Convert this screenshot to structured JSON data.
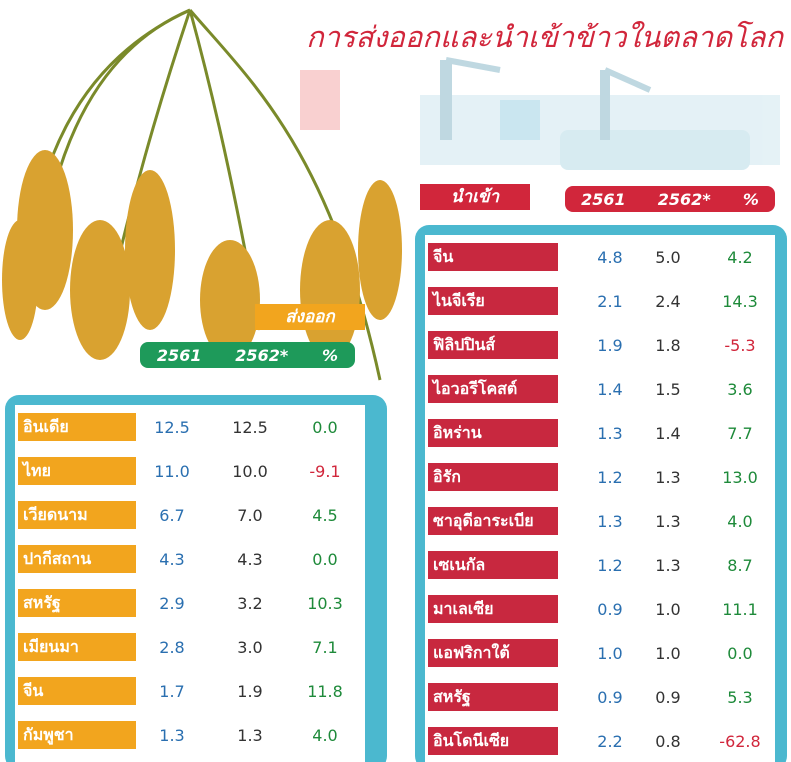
{
  "title": "การส่งออกและนำเข้าข้าวในตลาดโลก",
  "imports": {
    "label": "นำเข้า",
    "headers": [
      "2561",
      "2562*",
      "%"
    ],
    "rows": [
      [
        "จีน",
        "4.8",
        "5.0",
        "4.2"
      ],
      [
        "ไนจีเรีย",
        "2.1",
        "2.4",
        "14.3"
      ],
      [
        "ฟิลิปปินส์",
        "1.9",
        "1.8",
        "-5.3"
      ],
      [
        "ไอวอรีโคสต์",
        "1.4",
        "1.5",
        "3.6"
      ],
      [
        "อิหร่าน",
        "1.3",
        "1.4",
        "7.7"
      ],
      [
        "อิรัก",
        "1.2",
        "1.3",
        "13.0"
      ],
      [
        "ซาอุดีอาระเบีย",
        "1.3",
        "1.3",
        "4.0"
      ],
      [
        "เซเนกัล",
        "1.2",
        "1.3",
        "8.7"
      ],
      [
        "มาเลเซีย",
        "0.9",
        "1.0",
        "11.1"
      ],
      [
        "แอฟริกาใต้",
        "1.0",
        "1.0",
        "0.0"
      ],
      [
        "สหรัฐ",
        "0.9",
        "0.9",
        "5.3"
      ],
      [
        "อินโดนีเซีย",
        "2.2",
        "0.8",
        "-62.8"
      ]
    ]
  },
  "exports": {
    "label": "ส่งออก",
    "headers": [
      "2561",
      "2562*",
      "%"
    ],
    "rows": [
      [
        "อินเดีย",
        "12.5",
        "12.5",
        "0.0"
      ],
      [
        "ไทย",
        "11.0",
        "10.0",
        "-9.1"
      ],
      [
        "เวียดนาม",
        "6.7",
        "7.0",
        "4.5"
      ],
      [
        "ปากีสถาน",
        "4.3",
        "4.3",
        "0.0"
      ],
      [
        "สหรัฐ",
        "2.9",
        "3.2",
        "10.3"
      ],
      [
        "เมียนมา",
        "2.8",
        "3.0",
        "7.1"
      ],
      [
        "จีน",
        "1.7",
        "1.9",
        "11.8"
      ],
      [
        "กัมพูชา",
        "1.3",
        "1.3",
        "4.0"
      ]
    ]
  }
}
